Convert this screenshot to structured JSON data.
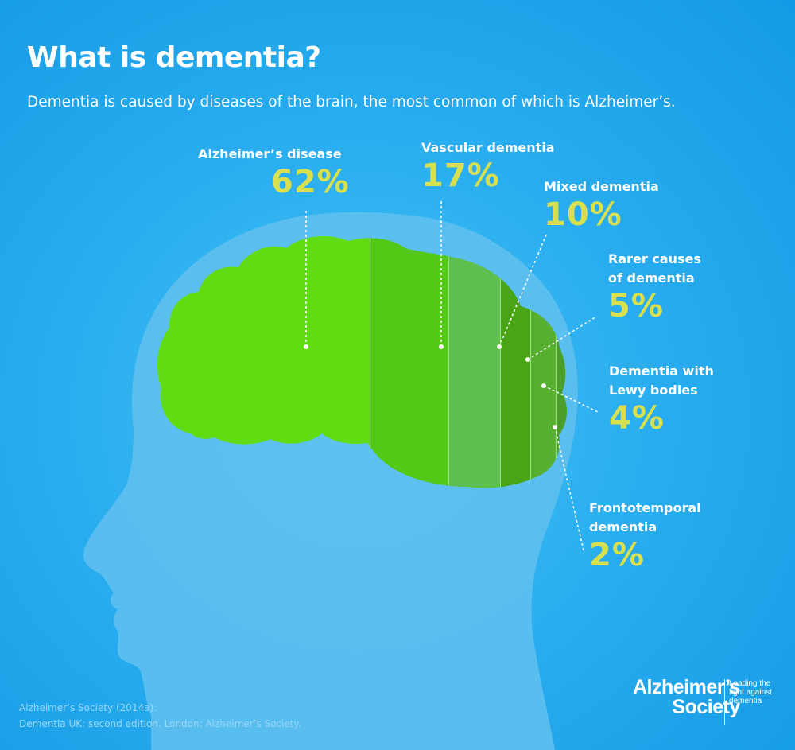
{
  "title": "What is dementia?",
  "subtitle": "Dementia is caused by diseases of the brain, the most common of which is Alzheimer’s.",
  "colors": {
    "background": "#1a9fe6",
    "head_silhouette": "#62c1ee",
    "brain_alzheimers": "#62dc12",
    "brain_vascular": "#54c817",
    "brain_mixed": "#5dbf4c",
    "brain_rarer": "#4aa516",
    "brain_lewy": "#58b030",
    "brain_frontotemporal": "#4c9e2a",
    "percent_text": "#d9e04f",
    "label_text": "#ffffff"
  },
  "chart_data": {
    "type": "pie",
    "title": "What is dementia?",
    "categories": [
      "Alzheimer’s disease",
      "Vascular dementia",
      "Mixed dementia",
      "Rarer causes\nof dementia",
      "Dementia with\nLewy bodies",
      "Frontotemporal\ndementia"
    ],
    "values": [
      62,
      17,
      10,
      5,
      4,
      2
    ],
    "value_labels": [
      "62%",
      "17%",
      "10%",
      "5%",
      "4%",
      "2%"
    ],
    "unit": "%"
  },
  "source": {
    "line1": "Alzheimer’s Society (2014a).",
    "line2": "Dementia UK: second edition. London: Alzheimer’s Society."
  },
  "logo": {
    "org_line1": "Alzheimer’s",
    "org_line2": "Society",
    "tagline_1": "Leading the",
    "tagline_2": "fight against",
    "tagline_3": "dementia"
  }
}
